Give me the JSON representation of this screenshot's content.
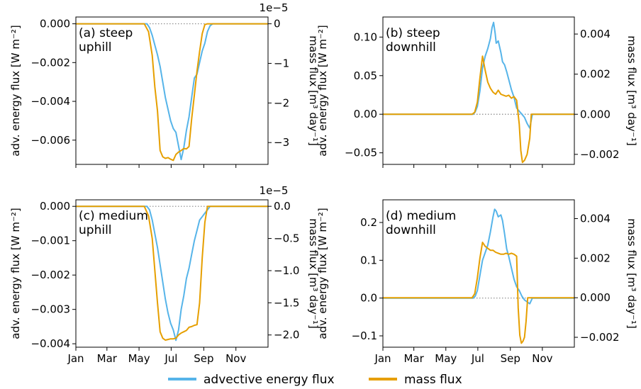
{
  "legend": {
    "items": [
      {
        "label": "advective energy flux",
        "color": "#56B4E9"
      },
      {
        "label": "mass flux",
        "color": "#E69F00"
      }
    ]
  },
  "chart_data": [
    {
      "type": "line",
      "title": "(a) steep\nuphill",
      "ylabel": "adv. energy flux [W m⁻²]",
      "y2label": "mass flux [m³ day⁻¹]",
      "ylim": [
        -0.00725,
        0.00035
      ],
      "yticks": [
        0.0,
        -0.002,
        -0.004,
        -0.006
      ],
      "ytick_labels": [
        "0.000",
        "−0.002",
        "−0.004",
        "−0.006"
      ],
      "y2lim": [
        -3.5514,
        0.1714
      ],
      "y2ticks": [
        0,
        -1,
        -2,
        -3
      ],
      "y2tick_labels": [
        "0",
        "−1",
        "−2",
        "−3"
      ],
      "y2_offset": "1e−5",
      "xlim": [
        0,
        365
      ],
      "series": [
        {
          "name": "advective energy flux",
          "axis": "left",
          "x": [
            0,
            135,
            140,
            145,
            150,
            155,
            160,
            165,
            170,
            175,
            180,
            185,
            190,
            195,
            200,
            205,
            210,
            215,
            220,
            225,
            230,
            235,
            240,
            245,
            250,
            255,
            260,
            265,
            270,
            275,
            280,
            285,
            290,
            365
          ],
          "y": [
            0,
            0,
            -0.0002,
            -0.0006,
            -0.0011,
            -0.0016,
            -0.0022,
            -0.003,
            -0.0038,
            -0.0044,
            -0.005,
            -0.0054,
            -0.0056,
            -0.0063,
            -0.007,
            -0.0064,
            -0.0055,
            -0.0048,
            -0.0038,
            -0.0028,
            -0.0026,
            -0.002,
            -0.0014,
            -0.001,
            -0.0004,
            -0.0001,
            0,
            0,
            0,
            0,
            0,
            0,
            0,
            0
          ]
        },
        {
          "name": "mass flux",
          "axis": "right",
          "x": [
            0,
            130,
            138,
            145,
            150,
            155,
            160,
            165,
            170,
            175,
            180,
            185,
            190,
            195,
            200,
            205,
            210,
            215,
            220,
            225,
            230,
            235,
            240,
            245,
            250,
            255,
            260,
            265,
            270,
            275,
            280,
            365
          ],
          "y": [
            0,
            0,
            -0.2,
            -0.8,
            -1.6,
            -2.2,
            -3.2,
            -3.36,
            -3.4,
            -3.38,
            -3.42,
            -3.45,
            -3.3,
            -3.24,
            -3.2,
            -3.15,
            -3.16,
            -3.1,
            -2.4,
            -1.8,
            -1.2,
            -0.7,
            -0.25,
            -0.02,
            0,
            0,
            0,
            0,
            0,
            0,
            0,
            0
          ]
        }
      ]
    },
    {
      "type": "line",
      "title": "(b) steep\ndownhill",
      "ylabel": "adv. energy flux [W m⁻²]",
      "y2label": "mass flux [m³ day⁻¹]",
      "ylim": [
        -0.065,
        0.126
      ],
      "yticks": [
        0.1,
        0.05,
        0.0,
        -0.05
      ],
      "ytick_labels": [
        "0.10",
        "0.05",
        "0.00",
        "−0.05"
      ],
      "y2lim": [
        -0.0025,
        0.00485
      ],
      "y2ticks": [
        0.004,
        0.002,
        0.0,
        -0.002
      ],
      "y2tick_labels": [
        "0.004",
        "0.002",
        "0.000",
        "−0.002"
      ],
      "xlim": [
        0,
        365
      ],
      "series": [
        {
          "name": "advective energy flux",
          "axis": "left",
          "x": [
            0,
            172,
            176,
            180,
            185,
            190,
            195,
            200,
            205,
            208,
            211,
            214,
            216,
            220,
            225,
            228,
            232,
            236,
            240,
            245,
            250,
            255,
            260,
            265,
            270,
            275,
            280,
            285,
            290,
            365
          ],
          "y": [
            0,
            0,
            0.003,
            0.01,
            0.03,
            0.06,
            0.075,
            0.085,
            0.098,
            0.112,
            0.119,
            0.105,
            0.092,
            0.095,
            0.08,
            0.068,
            0.064,
            0.055,
            0.045,
            0.032,
            0.022,
            0.008,
            0.004,
            0.0,
            -0.004,
            -0.012,
            -0.018,
            0.0,
            0.0,
            0.0
          ]
        },
        {
          "name": "mass flux",
          "axis": "right",
          "x": [
            0,
            170,
            175,
            180,
            185,
            190,
            195,
            200,
            205,
            210,
            215,
            220,
            225,
            230,
            235,
            240,
            245,
            250,
            255,
            260,
            263,
            266,
            270,
            275,
            280,
            283,
            365
          ],
          "y": [
            0,
            0,
            0.0001,
            0.0006,
            0.0018,
            0.0029,
            0.0022,
            0.0016,
            0.0013,
            0.0011,
            0.001,
            0.0012,
            0.001,
            0.00095,
            0.0009,
            0.00095,
            0.0008,
            0.00088,
            0.0007,
            -0.0005,
            -0.0018,
            -0.0024,
            -0.0023,
            -0.002,
            -0.0012,
            0.0,
            0.0
          ]
        }
      ]
    },
    {
      "type": "line",
      "title": "(c) medium\nuphill",
      "ylabel": "adv. energy flux [W m⁻²]",
      "y2label": "mass flux [m³ day⁻¹]",
      "ylim": [
        -0.0041,
        0.00019
      ],
      "yticks": [
        0.0,
        -0.001,
        -0.002,
        -0.003,
        -0.004
      ],
      "ytick_labels": [
        "0.000",
        "−0.001",
        "−0.002",
        "−0.003",
        "−0.004"
      ],
      "y2lim": [
        -2.19,
        0.101
      ],
      "y2ticks": [
        0.0,
        -0.5,
        -1.0,
        -1.5,
        -2.0
      ],
      "y2tick_labels": [
        "0.0",
        "−0.5",
        "−1.0",
        "−1.5",
        "−2.0"
      ],
      "y2_offset": "1e−5",
      "xlim": [
        0,
        365
      ],
      "series": [
        {
          "name": "advective energy flux",
          "axis": "left",
          "x": [
            0,
            135,
            140,
            145,
            150,
            155,
            160,
            165,
            170,
            175,
            180,
            185,
            190,
            195,
            200,
            205,
            210,
            215,
            220,
            225,
            230,
            235,
            240,
            245,
            250,
            255,
            260,
            265,
            270,
            275,
            280,
            365
          ],
          "y": [
            0,
            0,
            -0.0001,
            -0.0004,
            -0.0008,
            -0.0012,
            -0.0017,
            -0.0022,
            -0.0027,
            -0.0031,
            -0.0034,
            -0.0036,
            -0.0039,
            -0.0036,
            -0.003,
            -0.0026,
            -0.0021,
            -0.0018,
            -0.0014,
            -0.001,
            -0.0007,
            -0.0004,
            -0.0003,
            -0.0002,
            -0.0001,
            0,
            0,
            0,
            0,
            0,
            0,
            0
          ]
        },
        {
          "name": "mass flux",
          "axis": "right",
          "x": [
            0,
            130,
            138,
            145,
            150,
            155,
            160,
            165,
            170,
            175,
            180,
            185,
            190,
            195,
            200,
            205,
            210,
            215,
            220,
            225,
            230,
            235,
            240,
            245,
            250,
            255,
            260,
            365
          ],
          "y": [
            0,
            0,
            -0.15,
            -0.5,
            -1.0,
            -1.5,
            -1.95,
            -2.05,
            -2.08,
            -2.07,
            -2.06,
            -2.06,
            -2.05,
            -2.0,
            -1.97,
            -1.95,
            -1.93,
            -1.88,
            -1.87,
            -1.85,
            -1.84,
            -1.5,
            -0.8,
            -0.25,
            0,
            0,
            0,
            0
          ]
        }
      ]
    },
    {
      "type": "line",
      "title": "(d) medium\ndownhill",
      "ylabel": "adv. energy flux [W m⁻²]",
      "y2label": "mass flux [m³ day⁻¹]",
      "ylim": [
        -0.13,
        0.26
      ],
      "yticks": [
        0.2,
        0.1,
        0.0,
        -0.1
      ],
      "ytick_labels": [
        "0.2",
        "0.1",
        "0.0",
        "−0.1"
      ],
      "y2lim": [
        -0.0025,
        0.00495
      ],
      "y2ticks": [
        0.004,
        0.002,
        0.0,
        -0.002
      ],
      "y2tick_labels": [
        "0.004",
        "0.002",
        "0.000",
        "−0.002"
      ],
      "xlim": [
        0,
        365
      ],
      "series": [
        {
          "name": "advective energy flux",
          "axis": "left",
          "x": [
            0,
            172,
            176,
            180,
            185,
            190,
            195,
            200,
            205,
            210,
            213,
            216,
            220,
            225,
            228,
            232,
            236,
            240,
            245,
            250,
            255,
            260,
            265,
            270,
            275,
            280,
            285,
            290,
            365
          ],
          "y": [
            0,
            0,
            0.005,
            0.02,
            0.06,
            0.1,
            0.12,
            0.14,
            0.175,
            0.215,
            0.235,
            0.23,
            0.215,
            0.22,
            0.205,
            0.17,
            0.13,
            0.11,
            0.08,
            0.05,
            0.03,
            0.02,
            0.005,
            -0.005,
            -0.01,
            -0.015,
            0.0,
            0.0,
            0.0
          ]
        },
        {
          "name": "mass flux",
          "axis": "right",
          "x": [
            0,
            170,
            175,
            180,
            185,
            190,
            195,
            200,
            205,
            210,
            215,
            220,
            225,
            230,
            235,
            240,
            245,
            250,
            255,
            258,
            261,
            264,
            267,
            270,
            273,
            276,
            365
          ],
          "y": [
            0,
            0,
            0.0002,
            0.001,
            0.002,
            0.0028,
            0.0026,
            0.0025,
            0.0024,
            0.0024,
            0.0023,
            0.00225,
            0.0022,
            0.0022,
            0.00225,
            0.0022,
            0.00225,
            0.0022,
            0.0021,
            -0.0005,
            -0.0019,
            -0.0023,
            -0.0022,
            -0.002,
            -0.0012,
            0.0,
            0.0
          ]
        }
      ]
    }
  ],
  "shared_x": {
    "ticks": [
      0,
      59,
      120,
      181,
      243,
      304
    ],
    "tick_labels": [
      "Jan",
      "Mar",
      "May",
      "Jul",
      "Sep",
      "Nov"
    ]
  }
}
